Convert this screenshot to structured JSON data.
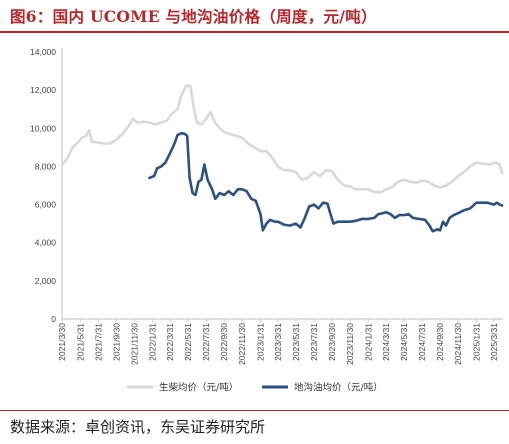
{
  "title": "图6：国内 UCOME 与地沟油价格（周度，元/吨）",
  "source": "数据来源：卓创资讯，东吴证券研究所",
  "colors": {
    "accent": "#b8262a",
    "series_ucome": "#d9d9d9",
    "series_uco": "#2e5083"
  },
  "chart_data": {
    "type": "line",
    "title": "",
    "xlabel": "",
    "ylabel": "",
    "ylim": [
      0,
      14000
    ],
    "yticks": [
      "0",
      "2,000",
      "4,000",
      "6,000",
      "8,000",
      "10,000",
      "12,000",
      "14,000"
    ],
    "x_tick_labels": [
      "2021/3/30",
      "2021/5/31",
      "2021/7/31",
      "2021/9/30",
      "2021/11/30",
      "2022/1/31",
      "2022/3/31",
      "2022/5/31",
      "2022/7/31",
      "2022/9/30",
      "2022/11/30",
      "2023/1/31",
      "2023/3/31",
      "2023/5/31",
      "2023/7/31",
      "2023/9/30",
      "2023/11/30",
      "2024/1/31",
      "2024/3/31",
      "2024/5/31",
      "2024/7/31",
      "2024/9/30",
      "2024/11/30",
      "2025/1/31",
      "2025/3/31"
    ],
    "x_range": [
      "2021-03-30",
      "2025-05-01"
    ],
    "grid": false,
    "legend_position": "bottom",
    "series": [
      {
        "name": "生柴均价（元/吨）",
        "points": [
          [
            "2021-03-30",
            8050
          ],
          [
            "2021-04-20",
            8500
          ],
          [
            "2021-05-05",
            9000
          ],
          [
            "2021-05-20",
            9200
          ],
          [
            "2021-06-05",
            9500
          ],
          [
            "2021-06-20",
            9600
          ],
          [
            "2021-06-30",
            9900
          ],
          [
            "2021-07-10",
            9300
          ],
          [
            "2021-07-31",
            9250
          ],
          [
            "2021-08-20",
            9200
          ],
          [
            "2021-09-10",
            9200
          ],
          [
            "2021-09-30",
            9400
          ],
          [
            "2021-10-20",
            9700
          ],
          [
            "2021-11-10",
            10100
          ],
          [
            "2021-11-25",
            10500
          ],
          [
            "2021-12-10",
            10300
          ],
          [
            "2021-12-31",
            10350
          ],
          [
            "2022-01-20",
            10300
          ],
          [
            "2022-02-10",
            10200
          ],
          [
            "2022-02-28",
            10300
          ],
          [
            "2022-03-20",
            10400
          ],
          [
            "2022-04-05",
            10750
          ],
          [
            "2022-04-25",
            11000
          ],
          [
            "2022-05-10",
            11800
          ],
          [
            "2022-05-25",
            12250
          ],
          [
            "2022-06-08",
            12200
          ],
          [
            "2022-06-18",
            11200
          ],
          [
            "2022-06-30",
            10300
          ],
          [
            "2022-07-15",
            10200
          ],
          [
            "2022-07-31",
            10500
          ],
          [
            "2022-08-15",
            10850
          ],
          [
            "2022-08-30",
            10300
          ],
          [
            "2022-09-15",
            10000
          ],
          [
            "2022-09-30",
            9800
          ],
          [
            "2022-10-20",
            9700
          ],
          [
            "2022-11-10",
            9600
          ],
          [
            "2022-11-30",
            9500
          ],
          [
            "2022-12-20",
            9200
          ],
          [
            "2023-01-10",
            9000
          ],
          [
            "2023-01-31",
            8800
          ],
          [
            "2023-02-20",
            8800
          ],
          [
            "2023-03-10",
            8500
          ],
          [
            "2023-03-31",
            8000
          ],
          [
            "2023-04-20",
            7800
          ],
          [
            "2023-05-10",
            7800
          ],
          [
            "2023-05-31",
            7700
          ],
          [
            "2023-06-20",
            7300
          ],
          [
            "2023-07-10",
            7400
          ],
          [
            "2023-07-31",
            7700
          ],
          [
            "2023-08-20",
            7500
          ],
          [
            "2023-09-10",
            7800
          ],
          [
            "2023-09-30",
            7750
          ],
          [
            "2023-10-20",
            7300
          ],
          [
            "2023-11-10",
            7000
          ],
          [
            "2023-11-30",
            6950
          ],
          [
            "2023-12-20",
            6800
          ],
          [
            "2024-01-15",
            6800
          ],
          [
            "2024-01-31",
            6800
          ],
          [
            "2024-02-20",
            6650
          ],
          [
            "2024-03-15",
            6650
          ],
          [
            "2024-03-31",
            6800
          ],
          [
            "2024-04-20",
            6900
          ],
          [
            "2024-05-10",
            7200
          ],
          [
            "2024-05-31",
            7300
          ],
          [
            "2024-06-20",
            7200
          ],
          [
            "2024-07-10",
            7150
          ],
          [
            "2024-07-31",
            7250
          ],
          [
            "2024-08-20",
            7200
          ],
          [
            "2024-09-10",
            7000
          ],
          [
            "2024-09-30",
            6900
          ],
          [
            "2024-10-20",
            7000
          ],
          [
            "2024-11-10",
            7200
          ],
          [
            "2024-11-30",
            7500
          ],
          [
            "2024-12-20",
            7700
          ],
          [
            "2025-01-10",
            8000
          ],
          [
            "2025-01-31",
            8200
          ],
          [
            "2025-02-20",
            8150
          ],
          [
            "2025-03-15",
            8100
          ],
          [
            "2025-04-05",
            8200
          ],
          [
            "2025-04-20",
            8100
          ],
          [
            "2025-04-28",
            7650
          ]
        ]
      },
      {
        "name": "地沟油均价（元/吨）",
        "points": [
          [
            "2022-01-20",
            7400
          ],
          [
            "2022-02-05",
            7500
          ],
          [
            "2022-02-15",
            7900
          ],
          [
            "2022-03-01",
            8000
          ],
          [
            "2022-03-15",
            8200
          ],
          [
            "2022-03-31",
            8700
          ],
          [
            "2022-04-15",
            9200
          ],
          [
            "2022-04-25",
            9650
          ],
          [
            "2022-05-10",
            9750
          ],
          [
            "2022-05-20",
            9700
          ],
          [
            "2022-05-28",
            9600
          ],
          [
            "2022-06-05",
            7400
          ],
          [
            "2022-06-15",
            6600
          ],
          [
            "2022-06-25",
            6500
          ],
          [
            "2022-07-05",
            7200
          ],
          [
            "2022-07-15",
            7300
          ],
          [
            "2022-07-25",
            8100
          ],
          [
            "2022-08-05",
            7300
          ],
          [
            "2022-08-20",
            6800
          ],
          [
            "2022-08-31",
            6300
          ],
          [
            "2022-09-15",
            6600
          ],
          [
            "2022-09-30",
            6500
          ],
          [
            "2022-10-15",
            6700
          ],
          [
            "2022-10-31",
            6500
          ],
          [
            "2022-11-15",
            6800
          ],
          [
            "2022-11-30",
            6800
          ],
          [
            "2022-12-15",
            6700
          ],
          [
            "2022-12-31",
            6300
          ],
          [
            "2023-01-15",
            6200
          ],
          [
            "2023-01-31",
            5500
          ],
          [
            "2023-02-08",
            4650
          ],
          [
            "2023-02-20",
            5000
          ],
          [
            "2023-03-05",
            5200
          ],
          [
            "2023-03-20",
            5100
          ],
          [
            "2023-03-31",
            5100
          ],
          [
            "2023-04-20",
            4950
          ],
          [
            "2023-05-10",
            4900
          ],
          [
            "2023-05-31",
            5000
          ],
          [
            "2023-06-15",
            4800
          ],
          [
            "2023-06-30",
            5300
          ],
          [
            "2023-07-15",
            5900
          ],
          [
            "2023-07-31",
            6000
          ],
          [
            "2023-08-15",
            5800
          ],
          [
            "2023-08-31",
            6100
          ],
          [
            "2023-09-15",
            6050
          ],
          [
            "2023-09-25",
            5500
          ],
          [
            "2023-10-05",
            5000
          ],
          [
            "2023-10-20",
            5100
          ],
          [
            "2023-11-10",
            5100
          ],
          [
            "2023-11-30",
            5100
          ],
          [
            "2023-12-20",
            5150
          ],
          [
            "2024-01-10",
            5250
          ],
          [
            "2024-01-31",
            5250
          ],
          [
            "2024-02-20",
            5300
          ],
          [
            "2024-03-05",
            5500
          ],
          [
            "2024-03-20",
            5550
          ],
          [
            "2024-03-31",
            5600
          ],
          [
            "2024-04-15",
            5500
          ],
          [
            "2024-04-30",
            5300
          ],
          [
            "2024-05-15",
            5450
          ],
          [
            "2024-05-31",
            5450
          ],
          [
            "2024-06-15",
            5500
          ],
          [
            "2024-06-30",
            5300
          ],
          [
            "2024-07-20",
            5250
          ],
          [
            "2024-08-10",
            5200
          ],
          [
            "2024-08-25",
            4900
          ],
          [
            "2024-09-05",
            4600
          ],
          [
            "2024-09-20",
            4700
          ],
          [
            "2024-09-30",
            4650
          ],
          [
            "2024-10-10",
            5100
          ],
          [
            "2024-10-20",
            4900
          ],
          [
            "2024-11-01",
            5300
          ],
          [
            "2024-11-15",
            5450
          ],
          [
            "2024-11-30",
            5550
          ],
          [
            "2024-12-20",
            5700
          ],
          [
            "2025-01-10",
            5800
          ],
          [
            "2025-01-31",
            6100
          ],
          [
            "2025-02-20",
            6100
          ],
          [
            "2025-03-10",
            6100
          ],
          [
            "2025-03-31",
            6000
          ],
          [
            "2025-04-10",
            6100
          ],
          [
            "2025-04-20",
            6000
          ],
          [
            "2025-04-28",
            5950
          ]
        ]
      }
    ]
  }
}
